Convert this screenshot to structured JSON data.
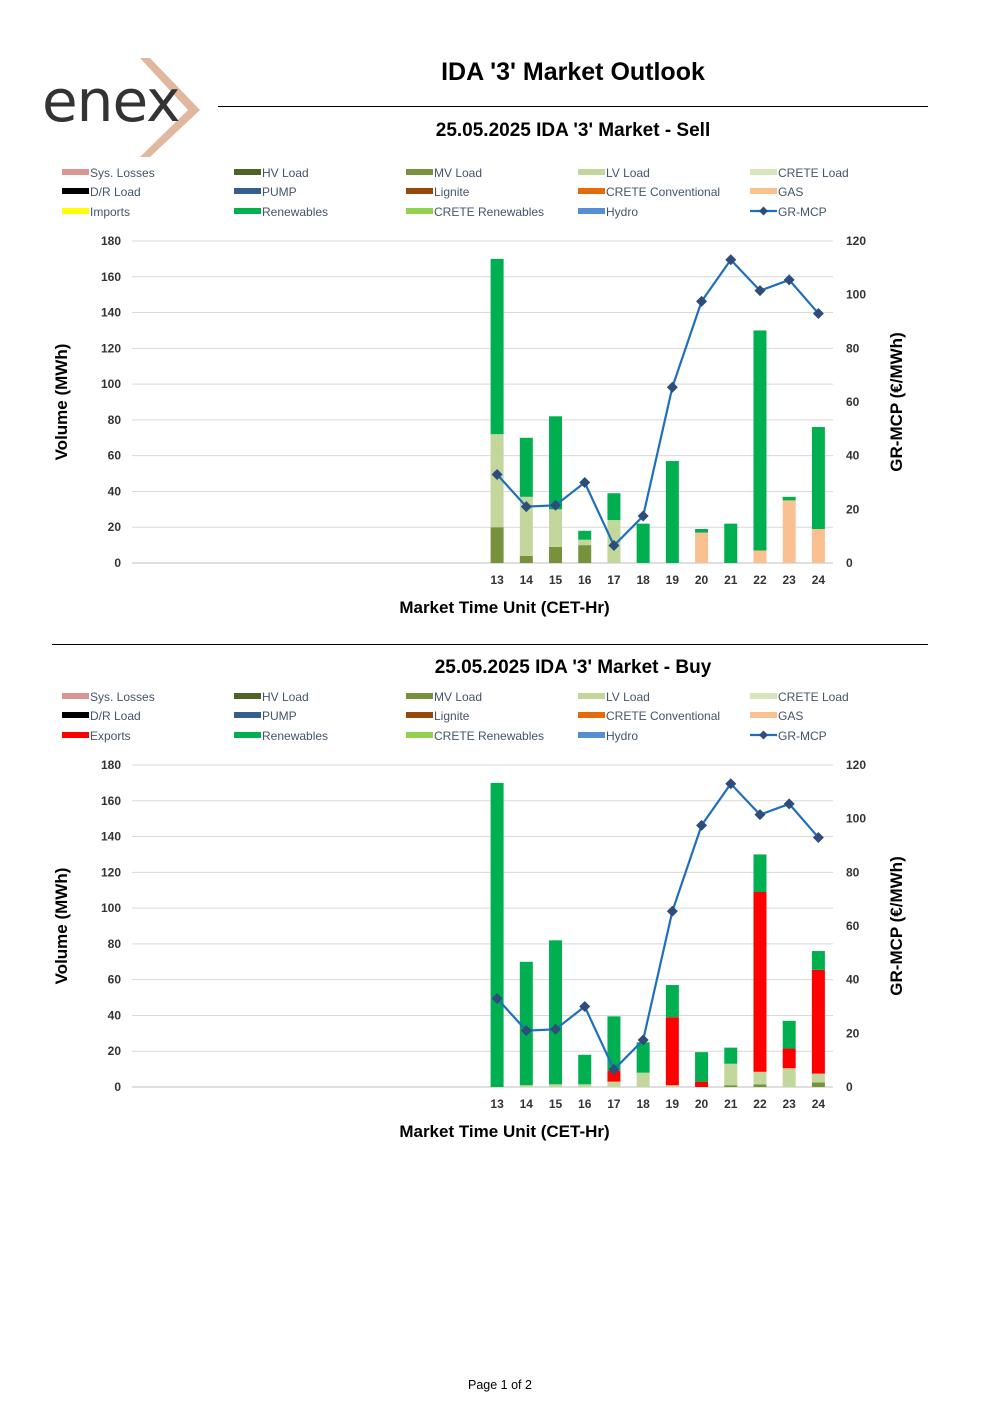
{
  "header": {
    "logo_text": "enex",
    "title": "IDA '3' Market Outlook"
  },
  "footer": {
    "page": "Page 1 of 2"
  },
  "colors": {
    "Sys. Losses": "#d99594",
    "HV Load": "#4f6228",
    "MV Load": "#76923c",
    "LV Load": "#c3d69b",
    "CRETE Load": "#d7e4bc",
    "D/R Load": "#000000",
    "PUMP": "#365f91",
    "Lignite": "#974806",
    "CRETE Conventional": "#e36c09",
    "GAS": "#fac090",
    "Imports": "#ffff00",
    "Exports": "#ff0000",
    "Renewables": "#00b050",
    "CRETE Renewables": "#92d050",
    "Hydro": "#558ed5",
    "GR-MCP": "#1f6fbf",
    "GR-MCP-marker": "#2e4d7b",
    "logo_chevron": "#e0b8a0"
  },
  "charts": [
    {
      "title": "25.05.2025  IDA '3' Market - Sell",
      "legend": [
        "Sys. Losses",
        "HV Load",
        "MV Load",
        "LV Load",
        "CRETE Load",
        "D/R Load",
        "PUMP",
        "Lignite",
        "CRETE Conventional",
        "GAS",
        "Imports",
        "Renewables",
        "CRETE Renewables",
        "Hydro",
        "GR-MCP"
      ]
    },
    {
      "title": "25.05.2025  IDA '3' Market - Buy",
      "legend": [
        "Sys. Losses",
        "HV Load",
        "MV Load",
        "LV Load",
        "CRETE Load",
        "D/R Load",
        "PUMP",
        "Lignite",
        "CRETE Conventional",
        "GAS",
        "Exports",
        "Renewables",
        "CRETE Renewables",
        "Hydro",
        "GR-MCP"
      ]
    }
  ],
  "chart_data": [
    {
      "type": "bar",
      "stacked": true,
      "title": "25.05.2025  IDA '3' Market - Sell",
      "xlabel": "Market Time Unit (CET-Hr)",
      "ylabel": "Volume (MWh)",
      "y2label": "GR-MCP (€/MWh)",
      "ylim": [
        0,
        180
      ],
      "y2lim": [
        0,
        120
      ],
      "yticks": [
        0,
        20,
        40,
        60,
        80,
        100,
        120,
        140,
        160,
        180
      ],
      "y2ticks": [
        0,
        20,
        40,
        60,
        80,
        100,
        120
      ],
      "categories": [
        "13",
        "14",
        "15",
        "16",
        "17",
        "18",
        "19",
        "20",
        "21",
        "22",
        "23",
        "24"
      ],
      "grid": true,
      "legend_position": "top",
      "series": [
        {
          "name": "MV Load",
          "values": [
            20,
            4,
            9,
            10,
            0,
            0,
            0,
            0,
            0,
            0,
            0,
            0
          ]
        },
        {
          "name": "LV Load",
          "values": [
            52,
            33,
            21,
            3,
            24,
            0,
            0,
            0,
            0,
            0,
            0,
            0
          ]
        },
        {
          "name": "GAS",
          "values": [
            0,
            0,
            0,
            0,
            0,
            0,
            0,
            17,
            0,
            7,
            35,
            19
          ]
        },
        {
          "name": "Renewables",
          "values": [
            98,
            33,
            52,
            5,
            15,
            22,
            57,
            2,
            22,
            123,
            2,
            57
          ]
        }
      ],
      "line": {
        "name": "GR-MCP",
        "axis": "right",
        "values": [
          33,
          21,
          21.5,
          30,
          6.5,
          17.5,
          65.5,
          97.5,
          113,
          101.5,
          105.5,
          93
        ]
      }
    },
    {
      "type": "bar",
      "stacked": true,
      "title": "25.05.2025  IDA '3' Market - Buy",
      "xlabel": "Market Time Unit (CET-Hr)",
      "ylabel": "Volume (MWh)",
      "y2label": "GR-MCP (€/MWh)",
      "ylim": [
        0,
        180
      ],
      "y2lim": [
        0,
        120
      ],
      "yticks": [
        0,
        20,
        40,
        60,
        80,
        100,
        120,
        140,
        160,
        180
      ],
      "y2ticks": [
        0,
        20,
        40,
        60,
        80,
        100,
        120
      ],
      "categories": [
        "13",
        "14",
        "15",
        "16",
        "17",
        "18",
        "19",
        "20",
        "21",
        "22",
        "23",
        "24"
      ],
      "grid": true,
      "legend_position": "top",
      "series": [
        {
          "name": "MV Load",
          "values": [
            0,
            0,
            0,
            0,
            0,
            0,
            0,
            0,
            1,
            1.5,
            0,
            2.5
          ]
        },
        {
          "name": "LV Load",
          "values": [
            0,
            1,
            1.5,
            1.5,
            3,
            8,
            1,
            0,
            12,
            7,
            10.5,
            5
          ]
        },
        {
          "name": "Exports",
          "values": [
            0,
            0,
            0,
            0,
            6,
            0,
            38,
            3,
            0,
            100.5,
            11,
            58
          ]
        },
        {
          "name": "Renewables",
          "values": [
            170,
            69,
            80.5,
            16.5,
            30.5,
            17,
            18,
            16.5,
            9,
            21,
            15.5,
            10.5
          ]
        }
      ],
      "line": {
        "name": "GR-MCP",
        "axis": "right",
        "values": [
          33,
          21,
          21.5,
          30,
          6.5,
          17.5,
          65.5,
          97.5,
          113,
          101.5,
          105.5,
          93
        ]
      }
    }
  ]
}
